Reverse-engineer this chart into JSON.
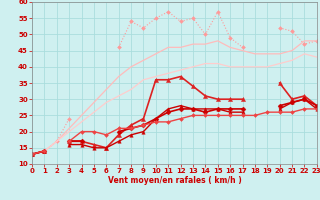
{
  "xlabel": "Vent moyen/en rafales ( km/h )",
  "xlim": [
    0,
    23
  ],
  "ylim": [
    10,
    60
  ],
  "yticks": [
    10,
    15,
    20,
    25,
    30,
    35,
    40,
    45,
    50,
    55,
    60
  ],
  "xticks": [
    0,
    1,
    2,
    3,
    4,
    5,
    6,
    7,
    8,
    9,
    10,
    11,
    12,
    13,
    14,
    15,
    16,
    17,
    18,
    19,
    20,
    21,
    22,
    23
  ],
  "bg_color": "#cff0f0",
  "grid_color": "#aadddd",
  "series": [
    {
      "name": "dotted_pink_top",
      "color": "#ff9999",
      "lw": 0.8,
      "marker": "D",
      "ms": 2.0,
      "style": ":",
      "x": [
        0,
        1,
        2,
        3,
        4,
        5,
        6,
        7,
        8,
        9,
        10,
        11,
        12,
        13,
        14,
        15,
        16,
        17,
        18,
        19,
        20,
        21,
        22,
        23
      ],
      "y": [
        13,
        14,
        17,
        24,
        null,
        null,
        null,
        46,
        54,
        52,
        55,
        57,
        54,
        55,
        50,
        57,
        49,
        46,
        null,
        null,
        52,
        51,
        47,
        48
      ]
    },
    {
      "name": "smooth_pink1",
      "color": "#ffbbbb",
      "lw": 0.9,
      "marker": null,
      "ms": 0,
      "style": "-",
      "x": [
        0,
        1,
        2,
        3,
        4,
        5,
        6,
        7,
        8,
        9,
        10,
        11,
        12,
        13,
        14,
        15,
        16,
        17,
        18,
        19,
        20,
        21,
        22,
        23
      ],
      "y": [
        13,
        14,
        17,
        21,
        25,
        29,
        33,
        37,
        40,
        42,
        44,
        46,
        46,
        47,
        47,
        48,
        46,
        45,
        44,
        44,
        44,
        45,
        48,
        48
      ]
    },
    {
      "name": "smooth_pink2",
      "color": "#ffcccc",
      "lw": 0.9,
      "marker": null,
      "ms": 0,
      "style": "-",
      "x": [
        0,
        1,
        2,
        3,
        4,
        5,
        6,
        7,
        8,
        9,
        10,
        11,
        12,
        13,
        14,
        15,
        16,
        17,
        18,
        19,
        20,
        21,
        22,
        23
      ],
      "y": [
        13,
        14,
        17,
        20,
        23,
        26,
        29,
        31,
        33,
        36,
        37,
        38,
        39,
        40,
        41,
        41,
        40,
        40,
        40,
        40,
        41,
        42,
        44,
        43
      ]
    },
    {
      "name": "red_triangle_top",
      "color": "#dd2222",
      "lw": 1.2,
      "marker": "^",
      "ms": 3.0,
      "style": "-",
      "x": [
        0,
        1,
        2,
        3,
        4,
        5,
        6,
        7,
        8,
        9,
        10,
        11,
        12,
        13,
        14,
        15,
        16,
        17,
        18,
        19,
        20,
        21,
        22,
        23
      ],
      "y": [
        13,
        14,
        null,
        17,
        17,
        16,
        15,
        19,
        22,
        24,
        36,
        36,
        37,
        34,
        31,
        30,
        30,
        30,
        null,
        null,
        35,
        30,
        31,
        28
      ]
    },
    {
      "name": "red_diamond_mid",
      "color": "#cc0000",
      "lw": 1.2,
      "marker": "D",
      "ms": 2.5,
      "style": "-",
      "x": [
        0,
        1,
        2,
        3,
        4,
        5,
        6,
        7,
        8,
        9,
        10,
        11,
        12,
        13,
        14,
        15,
        16,
        17,
        18,
        19,
        20,
        21,
        22,
        23
      ],
      "y": [
        13,
        14,
        null,
        17,
        17,
        null,
        null,
        20,
        21,
        22,
        24,
        26,
        27,
        27,
        26,
        27,
        27,
        27,
        null,
        null,
        28,
        29,
        30,
        28
      ]
    },
    {
      "name": "red_triangle_low",
      "color": "#cc0000",
      "lw": 1.0,
      "marker": "^",
      "ms": 2.5,
      "style": "-",
      "x": [
        0,
        1,
        2,
        3,
        4,
        5,
        6,
        7,
        8,
        9,
        10,
        11,
        12,
        13,
        14,
        15,
        16,
        17,
        18,
        19,
        20,
        21,
        22,
        23
      ],
      "y": [
        13,
        14,
        null,
        16,
        16,
        15,
        15,
        17,
        19,
        20,
        24,
        27,
        28,
        27,
        27,
        27,
        26,
        26,
        null,
        null,
        27,
        29,
        30,
        27
      ]
    },
    {
      "name": "red_diamond_low",
      "color": "#ee4444",
      "lw": 1.0,
      "marker": "D",
      "ms": 2.0,
      "style": "-",
      "x": [
        0,
        1,
        2,
        3,
        4,
        5,
        6,
        7,
        8,
        9,
        10,
        11,
        12,
        13,
        14,
        15,
        16,
        17,
        18,
        19,
        20,
        21,
        22,
        23
      ],
      "y": [
        13,
        14,
        null,
        17,
        20,
        20,
        19,
        21,
        21,
        22,
        23,
        23,
        24,
        25,
        25,
        25,
        25,
        25,
        25,
        26,
        26,
        26,
        27,
        27
      ]
    }
  ]
}
